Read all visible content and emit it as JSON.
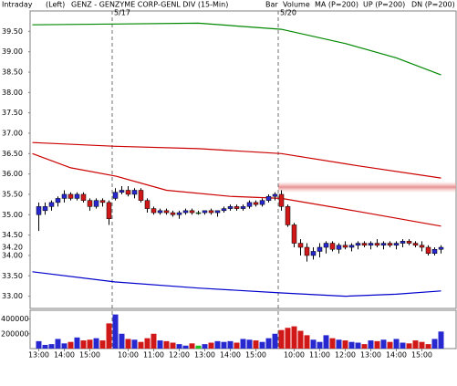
{
  "chart_data": {
    "type": "candlestick",
    "header": {
      "view": "Intraday",
      "axis_side": "(Left)",
      "symbol": "GENZ - GENZYME CORP-GENL DIV  (15-Min)"
    },
    "bar_label": "Bar",
    "date_labels": [
      "5/17",
      "5/20"
    ],
    "categories": [
      "13:00",
      null,
      null,
      null,
      "14:00",
      null,
      null,
      null,
      "15:00",
      null,
      null,
      null,
      null,
      null,
      "10:00",
      null,
      null,
      null,
      "11:00",
      null,
      null,
      null,
      "12:00",
      null,
      null,
      null,
      "13:00",
      null,
      null,
      null,
      "14:00",
      null,
      null,
      null,
      "15:00",
      null,
      null,
      null,
      null,
      null,
      "10:00",
      null,
      null,
      null,
      "11:00",
      null,
      null,
      null,
      "12:00",
      null,
      null,
      null,
      "13:00",
      null,
      null,
      null,
      "14:00",
      null,
      null,
      null,
      "15:00",
      null,
      null,
      null
    ],
    "open": [
      35.0,
      35.1,
      35.2,
      35.3,
      35.4,
      35.5,
      35.4,
      35.5,
      35.35,
      35.2,
      35.35,
      35.3,
      35.4,
      35.55,
      35.6,
      35.5,
      35.6,
      35.35,
      35.15,
      35.05,
      35.1,
      35.05,
      35.0,
      35.05,
      35.1,
      35.05,
      35.05,
      35.1,
      35.05,
      35.1,
      35.15,
      35.2,
      35.15,
      35.2,
      35.3,
      35.25,
      35.35,
      35.45,
      35.5,
      35.2,
      34.75,
      34.3,
      34.2,
      34.0,
      34.1,
      34.2,
      34.3,
      34.15,
      34.25,
      34.2,
      34.25,
      34.3,
      34.25,
      34.3,
      34.25,
      34.3,
      34.25,
      34.3,
      34.35,
      34.3,
      34.25,
      34.2,
      34.05,
      34.15
    ],
    "high": [
      35.3,
      35.3,
      35.35,
      35.45,
      35.6,
      35.55,
      35.55,
      35.55,
      35.4,
      35.4,
      35.4,
      35.35,
      35.65,
      35.7,
      35.7,
      35.65,
      35.65,
      35.4,
      35.2,
      35.15,
      35.15,
      35.1,
      35.1,
      35.15,
      35.15,
      35.1,
      35.1,
      35.15,
      35.1,
      35.2,
      35.25,
      35.25,
      35.25,
      35.35,
      35.35,
      35.4,
      35.5,
      35.55,
      35.6,
      35.25,
      34.8,
      34.4,
      34.3,
      34.2,
      34.3,
      34.35,
      34.35,
      34.3,
      34.35,
      34.3,
      34.35,
      34.35,
      34.35,
      34.4,
      34.35,
      34.35,
      34.35,
      34.4,
      34.4,
      34.35,
      34.35,
      34.25,
      34.2,
      34.25
    ],
    "low": [
      34.6,
      35.0,
      35.1,
      35.2,
      35.3,
      35.35,
      35.35,
      35.3,
      35.1,
      35.15,
      35.2,
      34.75,
      35.35,
      35.5,
      35.45,
      35.4,
      35.3,
      35.05,
      35.0,
      35.0,
      35.0,
      34.95,
      34.9,
      35.0,
      35.0,
      35.0,
      35.0,
      35.0,
      34.95,
      35.05,
      35.1,
      35.1,
      35.1,
      35.15,
      35.2,
      35.2,
      35.3,
      35.35,
      35.1,
      34.7,
      34.2,
      34.0,
      33.85,
      33.9,
      33.95,
      34.05,
      34.1,
      34.05,
      34.15,
      34.1,
      34.15,
      34.2,
      34.15,
      34.2,
      34.15,
      34.2,
      34.15,
      34.2,
      34.25,
      34.2,
      34.1,
      34.0,
      34.0,
      34.05
    ],
    "close": [
      35.2,
      35.2,
      35.3,
      35.4,
      35.5,
      35.4,
      35.5,
      35.35,
      35.2,
      35.35,
      35.3,
      34.9,
      35.55,
      35.6,
      35.5,
      35.6,
      35.35,
      35.15,
      35.05,
      35.1,
      35.05,
      35.0,
      35.05,
      35.1,
      35.05,
      35.05,
      35.1,
      35.05,
      35.1,
      35.15,
      35.2,
      35.15,
      35.2,
      35.3,
      35.25,
      35.35,
      35.45,
      35.5,
      35.2,
      34.75,
      34.3,
      34.2,
      34.0,
      34.1,
      34.2,
      34.3,
      34.15,
      34.25,
      34.2,
      34.25,
      34.3,
      34.25,
      34.3,
      34.25,
      34.3,
      34.25,
      34.3,
      34.35,
      34.3,
      34.25,
      34.2,
      34.05,
      34.15,
      34.2
    ],
    "up_color": "#2828d0",
    "down_color": "#d01818",
    "flat_color": "#20c020",
    "ylim": [
      32.7,
      40.0
    ],
    "yticks": [
      {
        "value": 39.5,
        "label": "39.50"
      },
      {
        "value": 39.0,
        "label": "39.00"
      },
      {
        "value": 38.5,
        "label": "38.50"
      },
      {
        "value": 38.0,
        "label": "38.00"
      },
      {
        "value": 37.5,
        "label": "37.50"
      },
      {
        "value": 37.0,
        "label": "37.00"
      },
      {
        "value": 36.5,
        "label": "36.50"
      },
      {
        "value": 36.0,
        "label": "36.00"
      },
      {
        "value": 35.5,
        "label": "35.50"
      },
      {
        "value": 35.0,
        "label": "35.00"
      },
      {
        "value": 34.5,
        "label": "34.50"
      },
      {
        "value": 34.0,
        "label": "34.00"
      },
      {
        "value": 33.5,
        "label": "33.50"
      },
      {
        "value": 33.0,
        "label": "33.00"
      }
    ],
    "last_price": {
      "value": 34.2,
      "label": "34.20"
    },
    "lines": [
      {
        "name": "MA (P=200)",
        "color": "#cc0000",
        "x": [
          -1,
          5,
          12,
          20,
          30,
          38,
          50,
          63
        ],
        "values": [
          36.5,
          36.15,
          35.95,
          35.6,
          35.45,
          35.4,
          35.08,
          34.72
        ]
      },
      {
        "color": "#cc0000",
        "x": [
          -1,
          12,
          25,
          38,
          50,
          63
        ],
        "values": [
          36.77,
          36.68,
          36.62,
          36.5,
          36.2,
          35.9
        ]
      },
      {
        "name": "UP (P=200)",
        "color": "#008800",
        "x": [
          -1,
          12,
          25,
          38,
          48,
          56,
          63
        ],
        "values": [
          39.66,
          39.68,
          39.7,
          39.55,
          39.2,
          38.85,
          38.43
        ]
      },
      {
        "name": "DN (P=200)",
        "color": "#0000cc",
        "x": [
          -1,
          12,
          25,
          38,
          48,
          56,
          63
        ],
        "values": [
          33.6,
          33.35,
          33.2,
          33.08,
          33.0,
          33.05,
          33.13
        ]
      }
    ],
    "volume": {
      "name": "Volume",
      "color": "#00a000",
      "values": [
        100000,
        50000,
        60000,
        130000,
        70000,
        90000,
        150000,
        110000,
        120000,
        140000,
        110000,
        340000,
        460000,
        200000,
        130000,
        120000,
        90000,
        140000,
        200000,
        110000,
        100000,
        80000,
        60000,
        40000,
        70000,
        40000,
        60000,
        80000,
        100000,
        90000,
        100000,
        80000,
        130000,
        120000,
        110000,
        90000,
        140000,
        200000,
        250000,
        280000,
        300000,
        240000,
        180000,
        120000,
        90000,
        180000,
        140000,
        120000,
        110000,
        90000,
        80000,
        60000,
        110000,
        100000,
        120000,
        90000,
        130000,
        80000,
        70000,
        110000,
        90000,
        60000,
        130000,
        230000
      ],
      "ylim": [
        0,
        480000
      ],
      "yticks": [
        400000,
        200000
      ]
    }
  }
}
